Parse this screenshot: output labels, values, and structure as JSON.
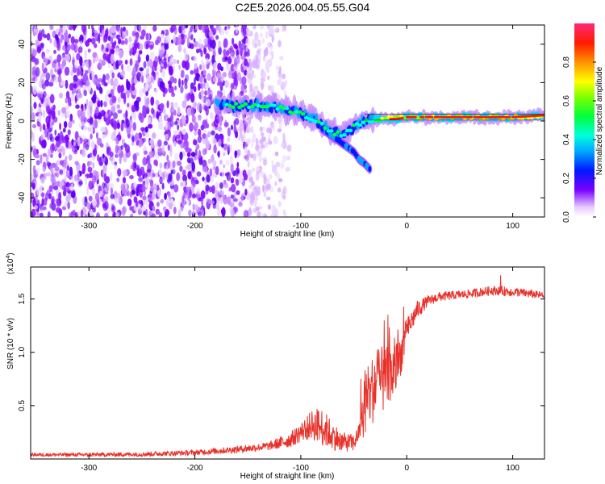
{
  "title": "C2E5.2026.004.05.55.G04",
  "colors": {
    "snr_line": "#e8312a",
    "axis": "#000000",
    "spec_purple": "#7a00ff",
    "ridge_red": "#ff1a00"
  },
  "chart_data": [
    {
      "type": "heatmap",
      "xlabel": "Height of straight line (km)",
      "ylabel": "Frequency (Hz)",
      "xlim": [
        -355,
        130
      ],
      "ylim": [
        -50,
        50
      ],
      "xticks": [
        -300,
        -200,
        -100,
        0,
        100
      ],
      "yticks": [
        -40,
        -20,
        0,
        20,
        40
      ],
      "colorbar": {
        "label": "Normalized spectral amplitude",
        "range": [
          0.0,
          1.0
        ],
        "ticks": [
          "0.0",
          "0.2",
          "0.4",
          "0.6",
          "0.8"
        ],
        "tick_values": [
          0.0,
          0.2,
          0.4,
          0.6,
          0.8
        ]
      },
      "noise_region_x": [
        -355,
        -140
      ],
      "ridge": {
        "x": [
          -180,
          -160,
          -140,
          -120,
          -100,
          -85,
          -70,
          -60,
          -50,
          -40,
          -30,
          -20,
          -10,
          0,
          20,
          50,
          80,
          100,
          130
        ],
        "freq": [
          9,
          8,
          8,
          7,
          4,
          0,
          -6,
          -7,
          -3,
          0,
          1,
          1,
          1,
          2,
          2,
          2,
          2,
          2,
          3
        ]
      },
      "branch": {
        "x": [
          -80,
          -70,
          -60,
          -50,
          -45,
          -40,
          -35
        ],
        "freq": [
          -4,
          -8,
          -12,
          -16,
          -20,
          -22,
          -25
        ]
      }
    },
    {
      "type": "line",
      "xlabel": "Height of straight line (km)",
      "ylabel": "SNR (10 * v/v)",
      "exponent_label": "(x10",
      "exponent_power": "4",
      "exponent_close": ")",
      "xlim": [
        -355,
        130
      ],
      "ylim": [
        0,
        18000
      ],
      "xticks": [
        -300,
        -200,
        -100,
        0,
        100
      ],
      "ytick_labels": [
        "0.5",
        "1.0",
        "1.5"
      ],
      "ytick_values": [
        5000,
        10000,
        15000
      ],
      "envelope": {
        "x": [
          -355,
          -300,
          -250,
          -200,
          -160,
          -130,
          -110,
          -100,
          -90,
          -80,
          -70,
          -60,
          -50,
          -45,
          -40,
          -35,
          -30,
          -25,
          -20,
          -15,
          -10,
          -5,
          0,
          10,
          20,
          30,
          40,
          60,
          80,
          100,
          130
        ],
        "y": [
          400,
          400,
          450,
          600,
          900,
          1200,
          1800,
          2500,
          3200,
          3000,
          2200,
          1600,
          1500,
          2500,
          4500,
          6000,
          7000,
          7300,
          7500,
          7800,
          8500,
          10000,
          12000,
          14000,
          14800,
          15200,
          15300,
          15500,
          15800,
          15700,
          15300
        ]
      },
      "noise": {
        "x": [
          -355,
          -200,
          -130,
          -100,
          -80,
          -60,
          -45,
          -40,
          -30,
          -20,
          -10,
          0,
          20,
          50,
          100,
          130
        ],
        "y": [
          150,
          250,
          400,
          900,
          1800,
          900,
          800,
          2500,
          3500,
          3000,
          2500,
          1200,
          500,
          400,
          450,
          350
        ]
      }
    }
  ]
}
